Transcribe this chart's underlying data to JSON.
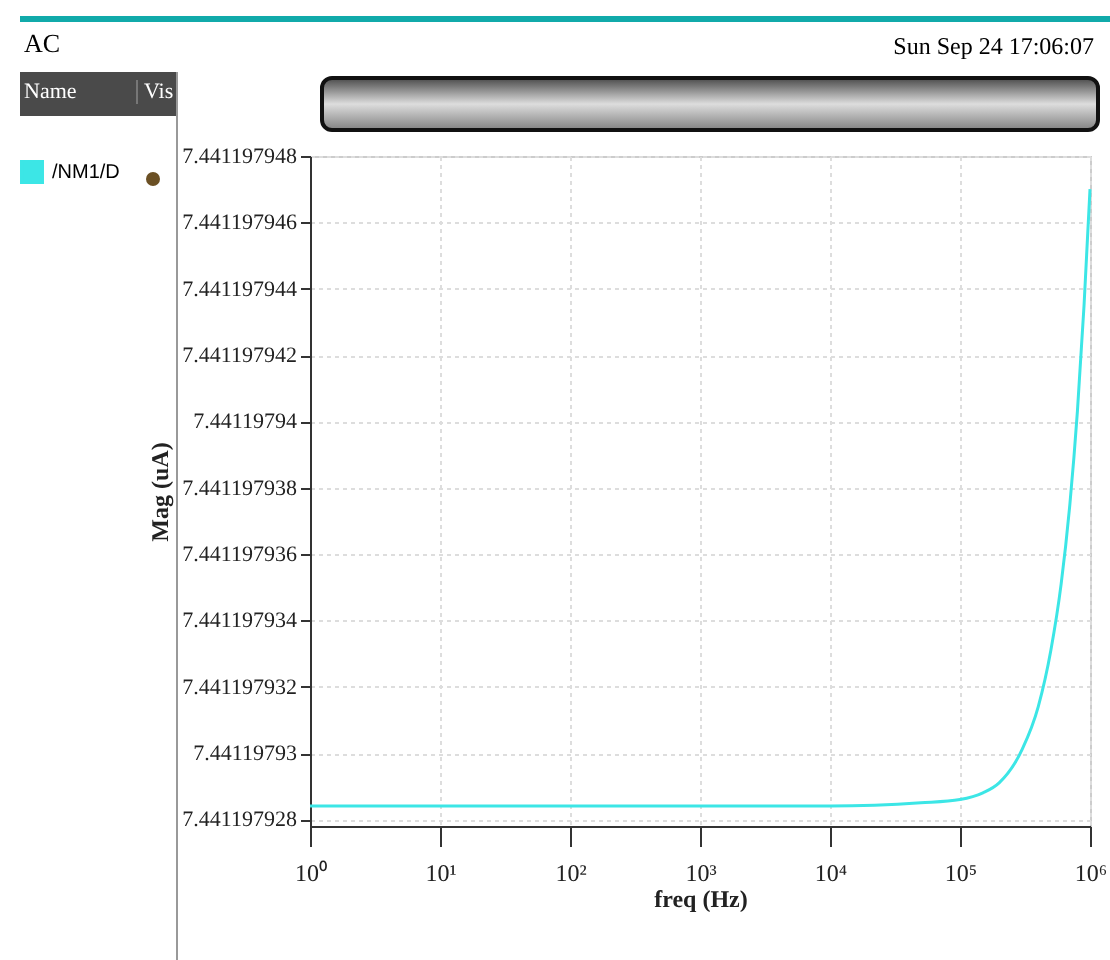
{
  "chart_data": {
    "type": "line",
    "title": "AC",
    "xlabel": "freq (Hz)",
    "ylabel": "Mag (uA)",
    "annotations": [
      "Sun Sep 24 17:06:07",
      "Name",
      "Vis"
    ],
    "x": [
      1,
      10,
      100,
      1000,
      10000,
      50000,
      100000,
      150000,
      200000,
      300000,
      400000,
      500000,
      600000,
      700000,
      800000,
      900000,
      1000000
    ],
    "series": [
      {
        "name": "/NM1/D",
        "color": "#3ce6e6",
        "values": [
          7.4411979284,
          7.4411979284,
          7.4411979284,
          7.4411979284,
          7.4411979284,
          7.4411979285,
          7.4411979286,
          7.4411979288,
          7.4411979291,
          7.4411979301,
          7.4411979314,
          7.4411979331,
          7.4411979351,
          7.4411979375,
          7.4411979403,
          7.4411979435,
          7.441197947
        ]
      }
    ],
    "log": "x",
    "xlim": [
      1,
      1000000
    ],
    "xticks": [
      {
        "value": 1,
        "label": "10⁰"
      },
      {
        "value": 10,
        "label": "10¹"
      },
      {
        "value": 100,
        "label": "10²"
      },
      {
        "value": 1000,
        "label": "10³"
      },
      {
        "value": 10000,
        "label": "10⁴"
      },
      {
        "value": 100000,
        "label": "10⁵"
      },
      {
        "value": 1000000,
        "label": "10⁶"
      }
    ],
    "ylim": [
      7.4411979278,
      7.441197948
    ],
    "yticks": [
      7.441197928,
      7.44119793,
      7.441197932,
      7.441197934,
      7.441197936,
      7.441197938,
      7.44119794,
      7.441197942,
      7.441197944,
      7.441197946,
      7.441197948
    ],
    "grid": true,
    "legend": "left",
    "marker": "none",
    "line_style": "solid"
  }
}
